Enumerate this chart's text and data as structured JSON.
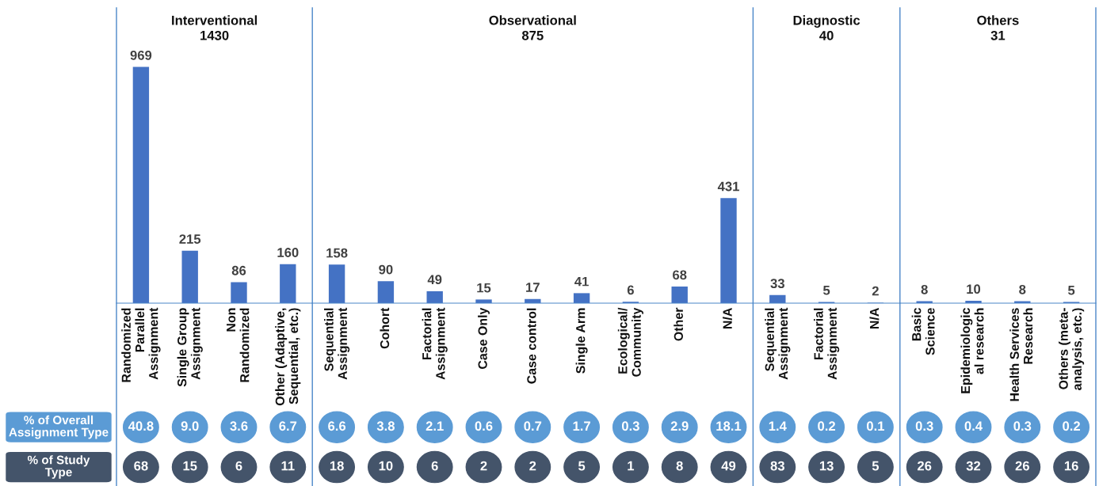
{
  "chart_data": [
    {
      "type": "bar",
      "title": "Interventional\n1430",
      "categories": [
        "Randomized\nParallel\nAssignment",
        "Single Group\nAssignment",
        "Non\nRandomized",
        "Other (Adaptive,\nSequential, etc.)"
      ],
      "values": [
        969,
        215,
        86,
        160
      ],
      "color": "#4472c4",
      "data_labels": true,
      "annotations": [
        "% of Overall\nAssignment Type",
        "40.8",
        "9.0",
        "3.6",
        "6.7",
        "% of Study\nType",
        "68",
        "15",
        "6",
        "11"
      ]
    },
    {
      "type": "bar",
      "title": "Observational\n875",
      "categories": [
        "Sequential\nAssignment",
        "Cohort",
        "Factorial\nAssignment",
        "Case Only",
        "Case control",
        "Single Arm",
        "Ecological/\nCommunity",
        "Other",
        "N/A"
      ],
      "values": [
        158,
        90,
        49,
        15,
        17,
        41,
        6,
        68,
        431
      ],
      "color": "#4472c4",
      "data_labels": true,
      "annotations": [
        "6.6",
        "3.8",
        "2.1",
        "0.6",
        "0.7",
        "1.7",
        "0.3",
        "2.9",
        "18.1",
        "18",
        "10",
        "6",
        "2",
        "2",
        "5",
        "1",
        "8",
        "49"
      ]
    },
    {
      "type": "bar",
      "title": "Diagnostic\n40",
      "categories": [
        "Sequential\nAssignment",
        "Factorial\nAssignment",
        "N/A"
      ],
      "values": [
        33,
        5,
        2
      ],
      "color": "#4472c4",
      "data_labels": true,
      "annotations": [
        "1.4",
        "0.2",
        "0.1",
        "83",
        "13",
        "5"
      ]
    },
    {
      "type": "bar",
      "title": "Others\n31",
      "categories": [
        "Basic\nScience",
        "Epidemiologic\nal research",
        "Health Services\nResearch",
        "Others (meta-\nanalysis, etc.)"
      ],
      "values": [
        8,
        10,
        8,
        5
      ],
      "color": "#4472c4",
      "data_labels": true,
      "annotations": [
        "0.3",
        "0.4",
        "0.3",
        "0.2",
        "26",
        "32",
        "26",
        "16"
      ]
    }
  ]
}
